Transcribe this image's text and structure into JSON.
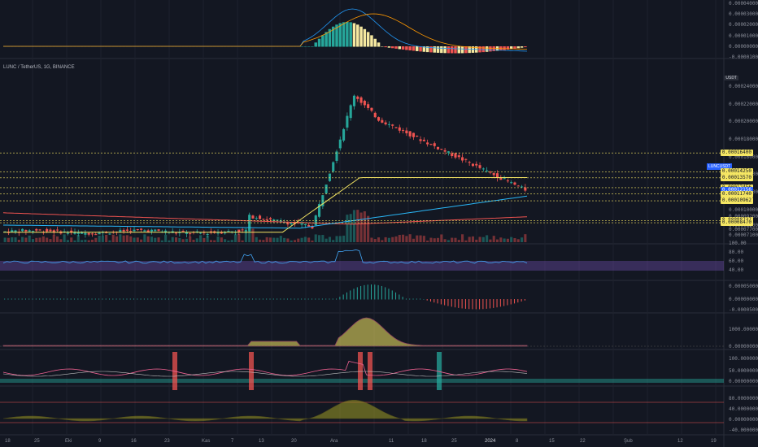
{
  "symbol": {
    "title": "LUNC / TetherUS, 1G, BINANCE",
    "quote": "USDT",
    "symbol_tag": "LUNCUSDT"
  },
  "colors": {
    "background": "#131722",
    "up": "#26a69a",
    "down": "#ef5350",
    "grid": "#1e222d",
    "yellow_line": "#f5e663",
    "rsi_band": "#7e57c2"
  },
  "chart_data": [
    {
      "type": "bar",
      "panel": "macd-top",
      "ticks": [
        "0.00004000",
        "0.00003000",
        "0.00002000",
        "0.00001000",
        "0.00000000",
        "-0.00001000"
      ]
    },
    {
      "type": "line",
      "panel": "price",
      "title": "LUNC / TetherUS, 1G, BINANCE",
      "ticks": [
        "0.00024000",
        "0.00022000",
        "0.00020000",
        "0.00018000",
        "0.00016000",
        "0.00014000",
        "0.00012000",
        "0.00010000",
        "0.00009200",
        "0.00008200",
        "0.00007700",
        "0.00007100"
      ],
      "price_tags": [
        {
          "label": "0.00016400",
          "color": "yellow"
        },
        {
          "label": "0.00014250",
          "color": "yellow"
        },
        {
          "label": "0.00013570",
          "color": "yellow"
        },
        {
          "label": "0.00012456",
          "color": "yellow"
        },
        {
          "label": "0.00012156",
          "color": "blue"
        },
        {
          "label": "0.00011740",
          "color": "yellow"
        },
        {
          "label": "0.00010962",
          "color": "yellow"
        },
        {
          "label": "0.00008727",
          "color": "yellow"
        },
        {
          "label": "0.00008470",
          "color": "yellow"
        }
      ],
      "volume_tick": "100.00"
    },
    {
      "type": "line",
      "panel": "rsi",
      "ticks": [
        "80.00",
        "60.00",
        "40.00"
      ]
    },
    {
      "type": "bar",
      "panel": "histogram",
      "ticks": [
        "0.00005000",
        "0.00000000",
        "-0.00005000"
      ]
    },
    {
      "type": "area",
      "panel": "oscillator-1",
      "ticks": [
        "1000.00000000",
        "0.00000000"
      ]
    },
    {
      "type": "line",
      "panel": "oscillator-2",
      "ticks": [
        "100.00000000",
        "50.00000000",
        "0.00000000"
      ]
    },
    {
      "type": "area",
      "panel": "oscillator-3",
      "ticks": [
        "80.00000000",
        "40.00000000",
        "0.00000000",
        "-40.00000000"
      ]
    }
  ],
  "time_axis": [
    "18",
    "25",
    "Eki",
    "9",
    "16",
    "23",
    "Kas",
    "7",
    "13",
    "20",
    "Ara",
    "11",
    "18",
    "25",
    "2024",
    "8",
    "15",
    "22",
    "Şub",
    "12",
    "19"
  ]
}
